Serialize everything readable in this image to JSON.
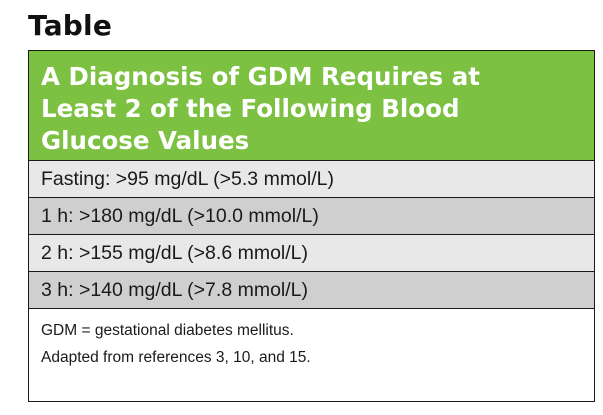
{
  "label": "Table",
  "table": {
    "title_lines": [
      "A Diagnosis of GDM Requires at",
      "Least 2 of the Following Blood",
      "Glucose Values"
    ],
    "rows": [
      "Fasting: >95 mg/dL (>5.3 mmol/L)",
      "1 h: >180 mg/dL (>10.0 mmol/L)",
      "2 h: >155 mg/dL (>8.6 mmol/L)",
      "3 h: >140 mg/dL (>7.8 mmol/L)"
    ],
    "footnotes": [
      "GDM = gestational diabetes mellitus.",
      "Adapted from references 3, 10, and 15."
    ]
  },
  "colors": {
    "header_green": "#7cc142",
    "row_light": "#e8e8e8",
    "row_dark": "#cfcfcf",
    "border": "#1a1a1a"
  }
}
